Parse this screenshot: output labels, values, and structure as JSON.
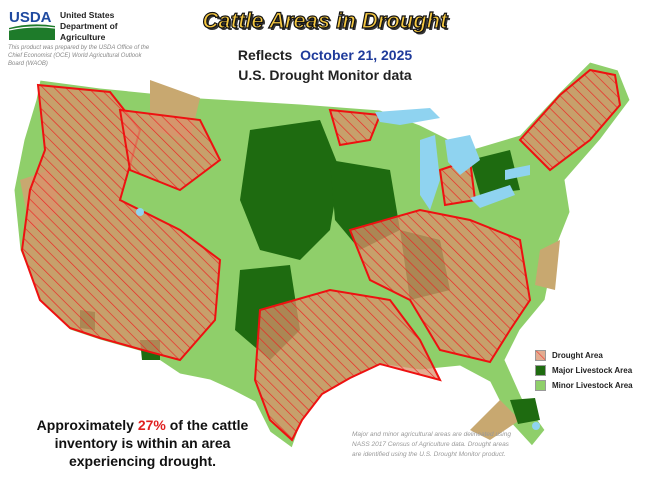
{
  "header": {
    "logo_text": "USDA",
    "agency": [
      "United States",
      "Department of",
      "Agriculture"
    ],
    "credit": "This product was prepared by the USDA Office of the Chief Economist (OCE) World Agricultural Outlook Board (WAOB)",
    "title": "Cattle Areas in Drought",
    "subtitle_prefix": "Reflects",
    "date": "October 21, 2025",
    "source": "U.S. Drought Monitor data"
  },
  "summary": {
    "before": "Approximately ",
    "percent": "27%",
    "after": " of the cattle inventory is within an area experiencing drought."
  },
  "note": "Major and minor agricultural areas are delineated using NASS 2017 Census of Agriculture data.  Drought areas are identified using the U.S. Drought Monitor product.",
  "legend": [
    {
      "label": "Drought Area",
      "color": "#f08070"
    },
    {
      "label": "Major Livestock Area",
      "color": "#1e6b10"
    },
    {
      "label": "Minor Livestock Area",
      "color": "#8fcf6a"
    }
  ],
  "colors": {
    "non_ag": "#c8a870",
    "drought_line": "#ee1111",
    "water": "#8fd3f0"
  }
}
